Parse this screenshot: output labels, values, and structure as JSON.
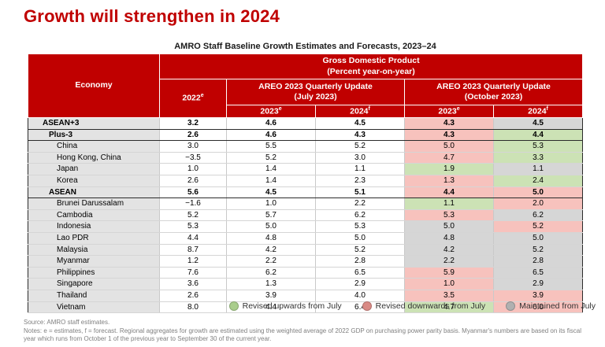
{
  "page": {
    "title": "Growth will strengthen in 2024",
    "table_caption": "AMRO Staff Baseline Growth Estimates and Forecasts, 2023–24"
  },
  "colors": {
    "header_red": "#c00000",
    "cell_up": "#cce2b5",
    "cell_down": "#f7c2bd",
    "cell_same": "#d6d6d6",
    "label_gray": "#e3e3e3",
    "legend_up_dot": "#a9cd8c",
    "legend_down_dot": "#d98a85",
    "legend_same_dot": "#b0b0b0"
  },
  "table": {
    "header": {
      "economy": "Economy",
      "gdp_title": "Gross Domestic Product",
      "gdp_subtitle": "(Percent year-on-year)",
      "col_2022": {
        "year": "2022",
        "sup": "e"
      },
      "july": {
        "title": "AREO 2023 Quarterly Update",
        "subtitle": "(July 2023)"
      },
      "october": {
        "title": "AREO 2023 Quarterly Update",
        "subtitle": "(October 2023)"
      },
      "sub_2023": {
        "year": "2023",
        "sup": "e"
      },
      "sub_2024": {
        "year": "2024",
        "sup": "f"
      }
    },
    "rows": [
      {
        "economy": "ASEAN+3",
        "level": "total",
        "v2022": "3.2",
        "jul2023": "4.6",
        "jul2024": "4.5",
        "oct2023": "4.3",
        "oct2023_status": "down",
        "oct2024": "4.5",
        "oct2024_status": "same"
      },
      {
        "economy": "Plus-3",
        "level": "group",
        "v2022": "2.6",
        "jul2023": "4.6",
        "jul2024": "4.3",
        "oct2023": "4.3",
        "oct2023_status": "down",
        "oct2024": "4.4",
        "oct2024_status": "up"
      },
      {
        "economy": "China",
        "level": "member",
        "v2022": "3.0",
        "jul2023": "5.5",
        "jul2024": "5.2",
        "oct2023": "5.0",
        "oct2023_status": "down",
        "oct2024": "5.3",
        "oct2024_status": "up"
      },
      {
        "economy": "Hong Kong, China",
        "level": "member",
        "v2022": "−3.5",
        "jul2023": "5.2",
        "jul2024": "3.0",
        "oct2023": "4.7",
        "oct2023_status": "down",
        "oct2024": "3.3",
        "oct2024_status": "up"
      },
      {
        "economy": "Japan",
        "level": "member",
        "v2022": "1.0",
        "jul2023": "1.4",
        "jul2024": "1.1",
        "oct2023": "1.9",
        "oct2023_status": "up",
        "oct2024": "1.1",
        "oct2024_status": "same"
      },
      {
        "economy": "Korea",
        "level": "member",
        "v2022": "2.6",
        "jul2023": "1.4",
        "jul2024": "2.3",
        "oct2023": "1.3",
        "oct2023_status": "down",
        "oct2024": "2.4",
        "oct2024_status": "up"
      },
      {
        "economy": "ASEAN",
        "level": "group",
        "v2022": "5.6",
        "jul2023": "4.5",
        "jul2024": "5.1",
        "oct2023": "4.4",
        "oct2023_status": "down",
        "oct2024": "5.0",
        "oct2024_status": "down"
      },
      {
        "economy": "Brunei Darussalam",
        "level": "member",
        "v2022": "−1.6",
        "jul2023": "1.0",
        "jul2024": "2.2",
        "oct2023": "1.1",
        "oct2023_status": "up",
        "oct2024": "2.0",
        "oct2024_status": "down"
      },
      {
        "economy": "Cambodia",
        "level": "member",
        "v2022": "5.2",
        "jul2023": "5.7",
        "jul2024": "6.2",
        "oct2023": "5.3",
        "oct2023_status": "down",
        "oct2024": "6.2",
        "oct2024_status": "same"
      },
      {
        "economy": "Indonesia",
        "level": "member",
        "v2022": "5.3",
        "jul2023": "5.0",
        "jul2024": "5.3",
        "oct2023": "5.0",
        "oct2023_status": "same",
        "oct2024": "5.2",
        "oct2024_status": "down"
      },
      {
        "economy": "Lao PDR",
        "level": "member",
        "v2022": "4.4",
        "jul2023": "4.8",
        "jul2024": "5.0",
        "oct2023": "4.8",
        "oct2023_status": "same",
        "oct2024": "5.0",
        "oct2024_status": "same"
      },
      {
        "economy": "Malaysia",
        "level": "member",
        "v2022": "8.7",
        "jul2023": "4.2",
        "jul2024": "5.2",
        "oct2023": "4.2",
        "oct2023_status": "same",
        "oct2024": "5.2",
        "oct2024_status": "same"
      },
      {
        "economy": "Myanmar",
        "level": "member",
        "v2022": "1.2",
        "jul2023": "2.2",
        "jul2024": "2.8",
        "oct2023": "2.2",
        "oct2023_status": "same",
        "oct2024": "2.8",
        "oct2024_status": "same"
      },
      {
        "economy": "Philippines",
        "level": "member",
        "v2022": "7.6",
        "jul2023": "6.2",
        "jul2024": "6.5",
        "oct2023": "5.9",
        "oct2023_status": "down",
        "oct2024": "6.5",
        "oct2024_status": "same"
      },
      {
        "economy": "Singapore",
        "level": "member",
        "v2022": "3.6",
        "jul2023": "1.3",
        "jul2024": "2.9",
        "oct2023": "1.0",
        "oct2023_status": "down",
        "oct2024": "2.9",
        "oct2024_status": "same"
      },
      {
        "economy": "Thailand",
        "level": "member",
        "v2022": "2.6",
        "jul2023": "3.9",
        "jul2024": "4.0",
        "oct2023": "3.5",
        "oct2023_status": "down",
        "oct2024": "3.9",
        "oct2024_status": "down"
      },
      {
        "economy": "Vietnam",
        "level": "member",
        "v2022": "8.0",
        "jul2023": "4.4",
        "jul2024": "6.4",
        "oct2023": "4.7",
        "oct2023_status": "up",
        "oct2024": "6.0",
        "oct2024_status": "down"
      }
    ]
  },
  "legend": [
    {
      "status": "up",
      "label": "Revised upwards from July"
    },
    {
      "status": "down",
      "label": "Revised downwards from July"
    },
    {
      "status": "same",
      "label": "Maintained from July"
    }
  ],
  "footer": {
    "source": "Source: AMRO staff estimates.",
    "notes": "Notes: e = estimates, f = forecast. Regional aggregates for growth are estimated using the weighted average of 2022 GDP on purchasing power parity basis. Myanmar's numbers are based on its fiscal year which runs from October 1 of the previous year to September 30 of the current year."
  }
}
